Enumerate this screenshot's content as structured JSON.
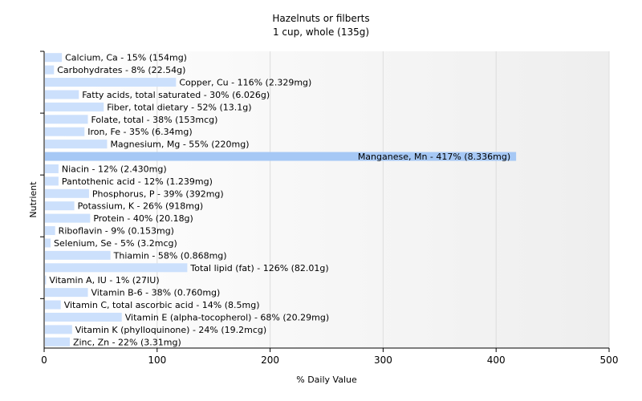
{
  "chart_data": {
    "type": "bar",
    "orientation": "horizontal",
    "title": "Hazelnuts or filberts",
    "subtitle": "1 cup, whole (135g)",
    "xlabel": "% Daily Value",
    "ylabel": "Nutrient",
    "xlim": [
      0,
      500
    ],
    "xticks": [
      "0",
      "100",
      "200",
      "300",
      "400",
      "500"
    ],
    "grid": true,
    "legend": "none",
    "colors": {
      "bar": "#cce0fc",
      "bar_highlight": "#a6c8f5",
      "grid": "#dddddd",
      "axis": "#000000"
    },
    "categories": [
      "Calcium, Ca",
      "Carbohydrates",
      "Copper, Cu",
      "Fatty acids, total saturated",
      "Fiber, total dietary",
      "Folate, total",
      "Iron, Fe",
      "Magnesium, Mg",
      "Manganese, Mn",
      "Niacin",
      "Pantothenic acid",
      "Phosphorus, P",
      "Potassium, K",
      "Protein",
      "Riboflavin",
      "Selenium, Se",
      "Thiamin",
      "Total lipid (fat)",
      "Vitamin A, IU",
      "Vitamin B-6",
      "Vitamin C, total ascorbic acid",
      "Vitamin E (alpha-tocopherol)",
      "Vitamin K (phylloquinone)",
      "Zinc, Zn"
    ],
    "values": [
      15,
      8,
      116,
      30,
      52,
      38,
      35,
      55,
      417,
      12,
      12,
      39,
      26,
      40,
      9,
      5,
      58,
      126,
      1,
      38,
      14,
      68,
      24,
      22
    ],
    "labels": [
      "Calcium, Ca - 15% (154mg)",
      "Carbohydrates - 8% (22.54g)",
      "Copper, Cu - 116% (2.329mg)",
      "Fatty acids, total saturated - 30% (6.026g)",
      "Fiber, total dietary - 52% (13.1g)",
      "Folate, total - 38% (153mcg)",
      "Iron, Fe - 35% (6.34mg)",
      "Magnesium, Mg - 55% (220mg)",
      "Manganese, Mn - 417% (8.336mg)",
      "Niacin - 12% (2.430mg)",
      "Pantothenic acid - 12% (1.239mg)",
      "Phosphorus, P - 39% (392mg)",
      "Potassium, K - 26% (918mg)",
      "Protein - 40% (20.18g)",
      "Riboflavin - 9% (0.153mg)",
      "Selenium, Se - 5% (3.2mcg)",
      "Thiamin - 58% (0.868mg)",
      "Total lipid (fat) - 126% (82.01g)",
      "Vitamin A, IU - 1% (27IU)",
      "Vitamin B-6 - 38% (0.760mg)",
      "Vitamin C, total ascorbic acid - 14% (8.5mg)",
      "Vitamin E (alpha-tocopherol) - 68% (20.29mg)",
      "Vitamin K (phylloquinone) - 24% (19.2mcg)",
      "Zinc, Zn - 22% (3.31mg)"
    ],
    "highlight_index": 8
  }
}
